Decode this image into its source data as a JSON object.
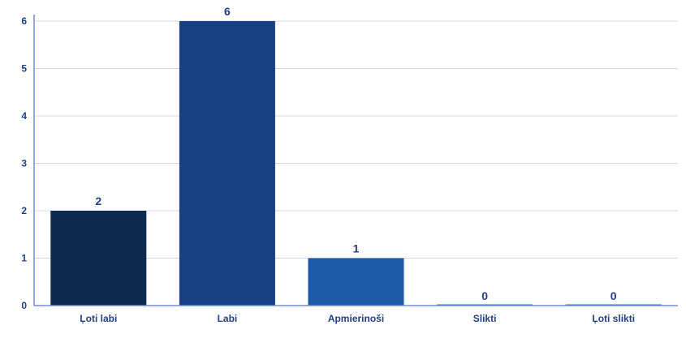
{
  "chart_data": {
    "type": "bar",
    "categories": [
      "Ļoti labi",
      "Labi",
      "Apmierinoši",
      "Slikti",
      "Ļoti slikti"
    ],
    "values": [
      2,
      6,
      1,
      0,
      0
    ],
    "data_labels": [
      "2",
      "6",
      "1",
      "0",
      "0"
    ],
    "bar_colors": [
      "#10294f",
      "#173f85",
      "#1f58a7",
      "#3a6fbf",
      "#3a6fbf"
    ],
    "title": "",
    "xlabel": "",
    "ylabel": "",
    "ylim": [
      0,
      6
    ],
    "yticks": [
      0,
      1,
      2,
      3,
      4,
      5,
      6
    ],
    "grid": true,
    "legend": "none"
  }
}
